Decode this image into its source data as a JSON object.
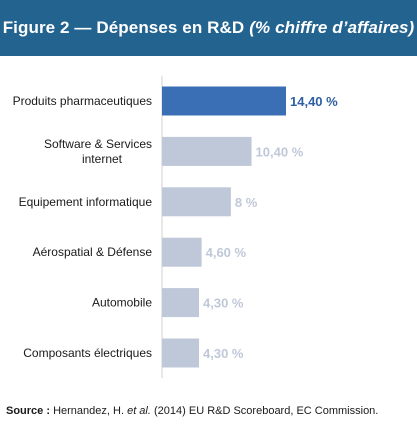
{
  "header": {
    "title_main": "Figure 2 — Dépenses en R&D",
    "title_italic": "(% chiffre d’affaires)"
  },
  "colors": {
    "header_bg": "#22638f",
    "highlight_bar": "#3a6fb5",
    "highlight_label": "#2e5fa5",
    "bar": "#bfc8d8",
    "label": "#bfc8d8"
  },
  "chart_data": {
    "type": "bar",
    "orientation": "horizontal",
    "categories": [
      [
        "Produits pharmaceutiques"
      ],
      [
        "Software & Services",
        "internet"
      ],
      [
        "Equipement informatique"
      ],
      [
        "Aérospatial & Défense"
      ],
      [
        "Automobile"
      ],
      [
        "Composants électriques"
      ]
    ],
    "values": [
      14.4,
      10.4,
      8,
      4.6,
      4.3,
      4.3
    ],
    "value_labels": [
      "14,40 %",
      "10,40 %",
      "8 %",
      "4,60 %",
      "4,30 %",
      "4,30 %"
    ],
    "highlight_index": 0,
    "xlim": [
      0,
      14.4
    ],
    "grid": false,
    "legend": "none"
  },
  "footer": {
    "source_label": "Source :",
    "text_before": "Hernandez, H.",
    "text_italic": "et al.",
    "text_after": "(2014) EU R&D Scoreboard, EC Commission."
  }
}
